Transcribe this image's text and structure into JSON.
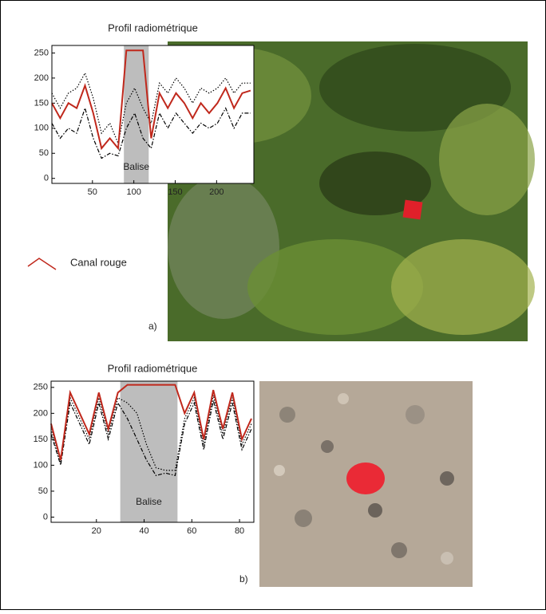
{
  "chart_data": [
    {
      "type": "line",
      "title": "Profil radiométrique",
      "panel_label": "a)",
      "x": [
        1,
        11,
        21,
        31,
        41,
        51,
        61,
        71,
        81,
        91,
        101,
        111,
        121,
        131,
        141,
        151,
        161,
        171,
        181,
        191,
        201,
        211,
        221,
        231,
        241
      ],
      "series": [
        {
          "name": "Canal rouge",
          "color": "#c0281c",
          "style": "solid",
          "values": [
            150,
            120,
            150,
            140,
            185,
            130,
            60,
            80,
            60,
            255,
            255,
            255,
            80,
            170,
            140,
            170,
            150,
            120,
            150,
            130,
            150,
            180,
            140,
            170,
            175
          ]
        },
        {
          "color": "#000000",
          "style": "dotted",
          "values": [
            170,
            140,
            170,
            180,
            210,
            160,
            90,
            110,
            70,
            150,
            180,
            140,
            110,
            190,
            170,
            200,
            180,
            150,
            180,
            170,
            180,
            200,
            170,
            190,
            190
          ]
        },
        {
          "color": "#000000",
          "style": "dashdot",
          "values": [
            110,
            80,
            100,
            90,
            140,
            80,
            40,
            50,
            45,
            100,
            130,
            80,
            60,
            130,
            100,
            130,
            110,
            90,
            110,
            100,
            110,
            140,
            100,
            130,
            130
          ]
        }
      ],
      "band": {
        "label": "Balise",
        "x0": 88,
        "x1": 118,
        "color": "#bdbdbd"
      },
      "xlim": [
        1,
        245
      ],
      "xticks": [
        50,
        100,
        150,
        200
      ],
      "ylim": [
        -10,
        265
      ],
      "yticks": [
        0,
        50,
        100,
        150,
        200,
        250
      ]
    },
    {
      "type": "line",
      "title": "Profil radiométrique",
      "panel_label": "b)",
      "x": [
        1,
        5,
        9,
        13,
        17,
        21,
        25,
        29,
        33,
        37,
        41,
        45,
        49,
        53,
        57,
        61,
        65,
        69,
        73,
        77,
        81,
        85
      ],
      "series": [
        {
          "color": "#c0281c",
          "style": "solid",
          "values": [
            180,
            110,
            240,
            200,
            160,
            240,
            170,
            240,
            255,
            255,
            255,
            255,
            255,
            255,
            200,
            240,
            150,
            245,
            170,
            240,
            150,
            190
          ]
        },
        {
          "color": "#000000",
          "style": "dotted",
          "values": [
            170,
            105,
            230,
            190,
            150,
            230,
            160,
            230,
            220,
            200,
            140,
            95,
            90,
            90,
            190,
            230,
            140,
            235,
            160,
            230,
            140,
            180
          ]
        },
        {
          "color": "#000000",
          "style": "dashdot",
          "values": [
            160,
            100,
            220,
            180,
            140,
            220,
            150,
            220,
            190,
            150,
            110,
            80,
            85,
            80,
            180,
            220,
            130,
            225,
            150,
            220,
            130,
            170
          ]
        }
      ],
      "band": {
        "label": "Balise",
        "x0": 30,
        "x1": 54,
        "color": "#bdbdbd"
      },
      "xlim": [
        1,
        86
      ],
      "xticks": [
        20,
        40,
        60,
        80
      ],
      "ylim": [
        -10,
        262
      ],
      "yticks": [
        0,
        50,
        100,
        150,
        200,
        250
      ]
    }
  ]
}
